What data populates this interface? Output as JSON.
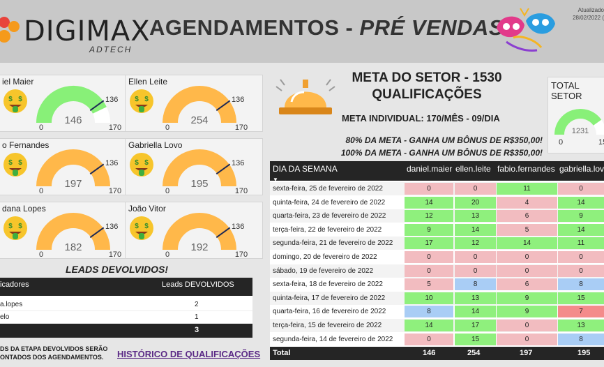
{
  "header": {
    "logo_text": "DIGIMAX",
    "logo_sub": "ADTECH",
    "title_main": "AGENDAMENTOS - ",
    "title_italic": "PRÉ VENDAS",
    "updated_line1": "Atualizado",
    "updated_line2": "28/02/2022 (",
    "colors": {
      "header_bg": "#c8c8c8",
      "accent_orange": "#ffb84a",
      "accent_green": "#88f078",
      "logo_orange": "#f59a1b",
      "logo_red": "#e8433b"
    }
  },
  "gauges": [
    {
      "name": "iel Maier",
      "value": 146,
      "value_label": "146",
      "max": 170,
      "max_label": "170",
      "target": 136,
      "target_label": "136",
      "min_label": "0",
      "color": "#88f078",
      "emoji": "money-face-icon"
    },
    {
      "name": "Ellen Leite",
      "value": 254,
      "value_label": "254",
      "max": 170,
      "max_label": "170",
      "target": 136,
      "target_label": "136",
      "min_label": "0",
      "color": "#ffb84a",
      "emoji": "money-face-icon"
    },
    {
      "name": "o Fernandes",
      "value": 197,
      "value_label": "197",
      "max": 170,
      "max_label": "170",
      "target": 136,
      "target_label": "136",
      "min_label": "0",
      "color": "#ffb84a",
      "emoji": "money-face-icon"
    },
    {
      "name": "Gabriella Lovo",
      "value": 195,
      "value_label": "195",
      "max": 170,
      "max_label": "170",
      "target": 136,
      "target_label": "136",
      "min_label": "0",
      "color": "#ffb84a",
      "emoji": "money-face-icon"
    },
    {
      "name": "dana Lopes",
      "value": 182,
      "value_label": "182",
      "max": 170,
      "max_label": "170",
      "target": 136,
      "target_label": "136",
      "min_label": "0",
      "color": "#ffb84a",
      "emoji": "money-face-icon"
    },
    {
      "name": "João Vitor",
      "value": 192,
      "value_label": "192",
      "max": 170,
      "max_label": "170",
      "target": 136,
      "target_label": "136",
      "min_label": "0",
      "color": "#ffb84a",
      "emoji": "money-face-icon"
    }
  ],
  "leads": {
    "title": "LEADS DEVOLVIDOS!",
    "col1": "icadores",
    "col2": "Leads DEVOLVIDOS",
    "rows": [
      {
        "name": "a.lopes",
        "value": "2"
      },
      {
        "name": "elo",
        "value": "1"
      }
    ],
    "total": "3",
    "note": "DS DA ETAPA DEVOLVIDOS SERÃO ONTADOS DOS AGENDAMENTOS.",
    "history_link": "HISTÓRICO DE QUALIFICAÇÕES"
  },
  "meta": {
    "title_line1": "META DO SETOR - 1530",
    "title_line2": "QUALIFICAÇÕES",
    "individual": "META INDIVIDUAL: 170/MÊS - 09/DIA",
    "bonus80": "80% DA META - GANHA UM BÔNUS DE R$350,00!",
    "bonus100": "100% DA META - GANHA UM BÔNUS DE R$350,00!"
  },
  "total_setor": {
    "label_line1": "TOTAL",
    "label_line2": "SETOR",
    "value": 1231,
    "value_label": "1231",
    "min_label": "0",
    "max_label": "15"
  },
  "matrix": {
    "date_header": "DIA DA SEMANA",
    "columns": [
      "daniel.maier",
      "ellen.leite",
      "fabio.fernandes",
      "gabriella.lovo"
    ],
    "colors": {
      "green": "#8ff07d",
      "pink": "#f2bcc0",
      "blue": "#a9cdf5",
      "red": "#f48b8b"
    },
    "rows": [
      {
        "day": "sexta-feira, 25 de fevereiro de 2022",
        "cells": [
          [
            "0",
            "pink"
          ],
          [
            "0",
            "pink"
          ],
          [
            "11",
            "green"
          ],
          [
            "0",
            "pink"
          ]
        ]
      },
      {
        "day": "quinta-feira, 24 de fevereiro de 2022",
        "cells": [
          [
            "14",
            "green"
          ],
          [
            "20",
            "green"
          ],
          [
            "4",
            "pink"
          ],
          [
            "14",
            "green"
          ]
        ]
      },
      {
        "day": "quarta-feira, 23 de fevereiro de 2022",
        "cells": [
          [
            "12",
            "green"
          ],
          [
            "13",
            "green"
          ],
          [
            "6",
            "pink"
          ],
          [
            "9",
            "green"
          ]
        ]
      },
      {
        "day": "terça-feira, 22 de fevereiro de 2022",
        "cells": [
          [
            "9",
            "green"
          ],
          [
            "14",
            "green"
          ],
          [
            "5",
            "pink"
          ],
          [
            "14",
            "green"
          ]
        ]
      },
      {
        "day": "segunda-feira, 21 de fevereiro de 2022",
        "cells": [
          [
            "17",
            "green"
          ],
          [
            "12",
            "green"
          ],
          [
            "14",
            "green"
          ],
          [
            "11",
            "green"
          ]
        ]
      },
      {
        "day": "domingo, 20 de fevereiro de 2022",
        "cells": [
          [
            "0",
            "pink"
          ],
          [
            "0",
            "pink"
          ],
          [
            "0",
            "pink"
          ],
          [
            "0",
            "pink"
          ]
        ]
      },
      {
        "day": "sábado, 19 de fevereiro de 2022",
        "cells": [
          [
            "0",
            "pink"
          ],
          [
            "0",
            "pink"
          ],
          [
            "0",
            "pink"
          ],
          [
            "0",
            "pink"
          ]
        ]
      },
      {
        "day": "sexta-feira, 18 de fevereiro de 2022",
        "cells": [
          [
            "5",
            "pink"
          ],
          [
            "8",
            "blue"
          ],
          [
            "6",
            "pink"
          ],
          [
            "8",
            "blue"
          ]
        ]
      },
      {
        "day": "quinta-feira, 17 de fevereiro de 2022",
        "cells": [
          [
            "10",
            "green"
          ],
          [
            "13",
            "green"
          ],
          [
            "9",
            "green"
          ],
          [
            "15",
            "green"
          ]
        ]
      },
      {
        "day": "quarta-feira, 16 de fevereiro de 2022",
        "cells": [
          [
            "8",
            "blue"
          ],
          [
            "14",
            "green"
          ],
          [
            "9",
            "green"
          ],
          [
            "7",
            "red"
          ]
        ]
      },
      {
        "day": "terça-feira, 15 de fevereiro de 2022",
        "cells": [
          [
            "14",
            "green"
          ],
          [
            "17",
            "green"
          ],
          [
            "0",
            "pink"
          ],
          [
            "13",
            "green"
          ]
        ]
      },
      {
        "day": "segunda-feira, 14 de fevereiro de 2022",
        "cells": [
          [
            "0",
            "pink"
          ],
          [
            "15",
            "green"
          ],
          [
            "0",
            "pink"
          ],
          [
            "8",
            "blue"
          ]
        ]
      }
    ],
    "total_label": "Total",
    "totals": [
      "146",
      "254",
      "197",
      "195"
    ]
  }
}
